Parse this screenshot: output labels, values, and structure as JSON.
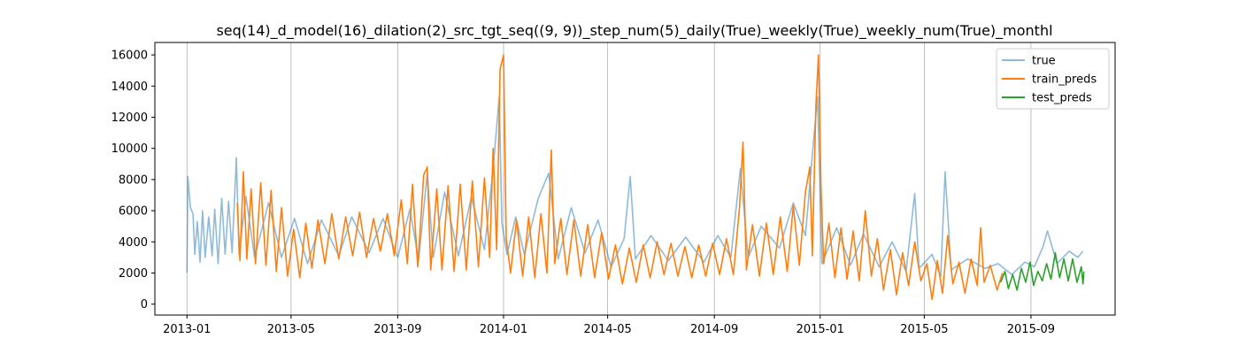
{
  "chart_data": {
    "type": "line",
    "title": "seq(14)_d_model(16)_dilation(2)_src_tgt_seq((9, 9))_step_num(5)_daily(True)_weekly(True)_weekly_num(True)_monthl",
    "xlabel": "",
    "ylabel": "",
    "x_axis": "date",
    "xlim": [
      "2012-11-25",
      "2015-12-07"
    ],
    "ylim": [
      -700,
      16800
    ],
    "x_tick_labels": [
      "2013-01",
      "2013-05",
      "2013-09",
      "2014-01",
      "2014-05",
      "2014-09",
      "2015-01",
      "2015-05",
      "2015-09"
    ],
    "x_ticks": [
      "2013-01-01",
      "2013-05-01",
      "2013-09-01",
      "2014-01-01",
      "2014-05-01",
      "2014-09-01",
      "2015-01-01",
      "2015-05-01",
      "2015-09-01"
    ],
    "y_ticks": [
      0,
      2000,
      4000,
      6000,
      8000,
      10000,
      12000,
      14000,
      16000
    ],
    "grid": "vertical lines at x ticks",
    "legend": {
      "position": "top-right",
      "entries": [
        "true",
        "train_preds",
        "test_preds"
      ]
    },
    "series": [
      {
        "name": "true",
        "color": "#1f77b4",
        "opacity": 0.5,
        "points": [
          [
            "2013-01-01",
            2000
          ],
          [
            "2013-01-02",
            8200
          ],
          [
            "2013-01-05",
            6200
          ],
          [
            "2013-01-08",
            5800
          ],
          [
            "2013-01-10",
            3200
          ],
          [
            "2013-01-13",
            5300
          ],
          [
            "2013-01-16",
            2700
          ],
          [
            "2013-01-19",
            6000
          ],
          [
            "2013-01-22",
            3000
          ],
          [
            "2013-01-26",
            5600
          ],
          [
            "2013-01-30",
            3100
          ],
          [
            "2013-02-02",
            6100
          ],
          [
            "2013-02-06",
            2600
          ],
          [
            "2013-02-10",
            6800
          ],
          [
            "2013-02-14",
            3200
          ],
          [
            "2013-02-18",
            6600
          ],
          [
            "2013-02-22",
            3300
          ],
          [
            "2013-02-27",
            9400
          ],
          [
            "2013-03-02",
            3200
          ],
          [
            "2013-03-10",
            6900
          ],
          [
            "2013-03-20",
            3000
          ],
          [
            "2013-04-05",
            6500
          ],
          [
            "2013-04-20",
            3000
          ],
          [
            "2013-05-05",
            5500
          ],
          [
            "2013-05-20",
            2600
          ],
          [
            "2013-06-05",
            5400
          ],
          [
            "2013-06-25",
            3100
          ],
          [
            "2013-07-10",
            5600
          ],
          [
            "2013-07-30",
            3300
          ],
          [
            "2013-08-15",
            5500
          ],
          [
            "2013-09-01",
            3000
          ],
          [
            "2013-09-15",
            6100
          ],
          [
            "2013-09-25",
            2800
          ],
          [
            "2013-10-05",
            8400
          ],
          [
            "2013-10-12",
            3000
          ],
          [
            "2013-10-25",
            7200
          ],
          [
            "2013-11-10",
            3100
          ],
          [
            "2013-11-25",
            6900
          ],
          [
            "2013-12-10",
            3500
          ],
          [
            "2013-12-20",
            8700
          ],
          [
            "2013-12-27",
            13300
          ],
          [
            "2013-12-30",
            5200
          ],
          [
            "2014-01-05",
            3200
          ],
          [
            "2014-01-15",
            5600
          ],
          [
            "2014-01-25",
            3200
          ],
          [
            "2014-02-10",
            6800
          ],
          [
            "2014-02-22",
            8400
          ],
          [
            "2014-03-05",
            2900
          ],
          [
            "2014-03-20",
            6200
          ],
          [
            "2014-04-05",
            3300
          ],
          [
            "2014-04-20",
            5400
          ],
          [
            "2014-05-05",
            2400
          ],
          [
            "2014-05-20",
            4200
          ],
          [
            "2014-05-27",
            8200
          ],
          [
            "2014-06-02",
            2900
          ],
          [
            "2014-06-20",
            4400
          ],
          [
            "2014-07-10",
            2800
          ],
          [
            "2014-07-30",
            4300
          ],
          [
            "2014-08-20",
            2700
          ],
          [
            "2014-09-05",
            4400
          ],
          [
            "2014-09-20",
            3000
          ],
          [
            "2014-10-01",
            8700
          ],
          [
            "2014-10-10",
            3000
          ],
          [
            "2014-10-25",
            5000
          ],
          [
            "2014-11-15",
            3600
          ],
          [
            "2014-12-01",
            6500
          ],
          [
            "2014-12-15",
            4400
          ],
          [
            "2014-12-25",
            10900
          ],
          [
            "2014-12-29",
            13300
          ],
          [
            "2015-01-03",
            2600
          ],
          [
            "2015-01-20",
            4900
          ],
          [
            "2015-02-05",
            2500
          ],
          [
            "2015-02-20",
            4500
          ],
          [
            "2015-03-10",
            2400
          ],
          [
            "2015-03-25",
            4000
          ],
          [
            "2015-04-10",
            2100
          ],
          [
            "2015-04-20",
            7100
          ],
          [
            "2015-04-25",
            2300
          ],
          [
            "2015-05-10",
            3200
          ],
          [
            "2015-05-20",
            1800
          ],
          [
            "2015-05-25",
            8500
          ],
          [
            "2015-06-01",
            2200
          ],
          [
            "2015-06-20",
            2900
          ],
          [
            "2015-07-10",
            2300
          ],
          [
            "2015-07-25",
            2600
          ],
          [
            "2015-08-10",
            1900
          ],
          [
            "2015-08-25",
            2700
          ],
          [
            "2015-09-05",
            2400
          ],
          [
            "2015-09-15",
            3700
          ],
          [
            "2015-09-20",
            4700
          ],
          [
            "2015-10-01",
            2600
          ],
          [
            "2015-10-15",
            3400
          ],
          [
            "2015-10-25",
            3000
          ],
          [
            "2015-10-31",
            3400
          ]
        ]
      },
      {
        "name": "train_preds",
        "color": "#ff7f0e",
        "opacity": 1,
        "points": [
          [
            "2013-02-28",
            6500
          ],
          [
            "2013-03-03",
            2800
          ],
          [
            "2013-03-07",
            8500
          ],
          [
            "2013-03-11",
            2900
          ],
          [
            "2013-03-16",
            7400
          ],
          [
            "2013-03-21",
            2600
          ],
          [
            "2013-03-27",
            7800
          ],
          [
            "2013-04-02",
            2500
          ],
          [
            "2013-04-08",
            7300
          ],
          [
            "2013-04-14",
            2100
          ],
          [
            "2013-04-20",
            6200
          ],
          [
            "2013-04-27",
            1800
          ],
          [
            "2013-05-04",
            4800
          ],
          [
            "2013-05-11",
            1700
          ],
          [
            "2013-05-18",
            5200
          ],
          [
            "2013-05-25",
            2300
          ],
          [
            "2013-06-01",
            5400
          ],
          [
            "2013-06-09",
            2600
          ],
          [
            "2013-06-17",
            5800
          ],
          [
            "2013-06-25",
            2900
          ],
          [
            "2013-07-03",
            5600
          ],
          [
            "2013-07-11",
            3100
          ],
          [
            "2013-07-19",
            5900
          ],
          [
            "2013-07-27",
            3000
          ],
          [
            "2013-08-04",
            5500
          ],
          [
            "2013-08-12",
            3400
          ],
          [
            "2013-08-20",
            5800
          ],
          [
            "2013-08-28",
            3100
          ],
          [
            "2013-09-05",
            6700
          ],
          [
            "2013-09-12",
            2600
          ],
          [
            "2013-09-18",
            7700
          ],
          [
            "2013-09-24",
            2400
          ],
          [
            "2013-10-01",
            8300
          ],
          [
            "2013-10-05",
            8800
          ],
          [
            "2013-10-09",
            2200
          ],
          [
            "2013-10-16",
            7400
          ],
          [
            "2013-10-22",
            2200
          ],
          [
            "2013-10-29",
            7600
          ],
          [
            "2013-11-05",
            2100
          ],
          [
            "2013-11-12",
            7700
          ],
          [
            "2013-11-19",
            2200
          ],
          [
            "2013-11-26",
            7900
          ],
          [
            "2013-12-03",
            2400
          ],
          [
            "2013-12-10",
            8100
          ],
          [
            "2013-12-16",
            3000
          ],
          [
            "2013-12-20",
            10000
          ],
          [
            "2013-12-24",
            3500
          ],
          [
            "2013-12-28",
            15100
          ],
          [
            "2014-01-01",
            16000
          ],
          [
            "2014-01-04",
            4200
          ],
          [
            "2014-01-09",
            2000
          ],
          [
            "2014-01-16",
            5400
          ],
          [
            "2014-01-23",
            1800
          ],
          [
            "2014-01-30",
            5600
          ],
          [
            "2014-02-06",
            1700
          ],
          [
            "2014-02-13",
            5800
          ],
          [
            "2014-02-20",
            2000
          ],
          [
            "2014-02-25",
            9900
          ],
          [
            "2014-03-01",
            2600
          ],
          [
            "2014-03-08",
            5500
          ],
          [
            "2014-03-15",
            1900
          ],
          [
            "2014-03-23",
            5400
          ],
          [
            "2014-03-31",
            1800
          ],
          [
            "2014-04-08",
            5100
          ],
          [
            "2014-04-16",
            1700
          ],
          [
            "2014-04-24",
            4600
          ],
          [
            "2014-05-02",
            1600
          ],
          [
            "2014-05-10",
            3800
          ],
          [
            "2014-05-18",
            1300
          ],
          [
            "2014-05-26",
            3600
          ],
          [
            "2014-06-03",
            1400
          ],
          [
            "2014-06-11",
            3800
          ],
          [
            "2014-06-19",
            1700
          ],
          [
            "2014-06-27",
            4000
          ],
          [
            "2014-07-05",
            1900
          ],
          [
            "2014-07-13",
            3900
          ],
          [
            "2014-07-21",
            1800
          ],
          [
            "2014-07-29",
            3700
          ],
          [
            "2014-08-06",
            1700
          ],
          [
            "2014-08-14",
            3800
          ],
          [
            "2014-08-22",
            1800
          ],
          [
            "2014-08-30",
            3900
          ],
          [
            "2014-09-07",
            1900
          ],
          [
            "2014-09-15",
            4200
          ],
          [
            "2014-09-23",
            1900
          ],
          [
            "2014-09-30",
            6200
          ],
          [
            "2014-10-04",
            10400
          ],
          [
            "2014-10-08",
            2200
          ],
          [
            "2014-10-15",
            5100
          ],
          [
            "2014-10-23",
            1800
          ],
          [
            "2014-10-31",
            5200
          ],
          [
            "2014-11-08",
            1900
          ],
          [
            "2014-11-16",
            5600
          ],
          [
            "2014-11-24",
            2100
          ],
          [
            "2014-12-01",
            6300
          ],
          [
            "2014-12-08",
            2500
          ],
          [
            "2014-12-15",
            7200
          ],
          [
            "2014-12-20",
            8800
          ],
          [
            "2014-12-23",
            3100
          ],
          [
            "2014-12-27",
            12700
          ],
          [
            "2014-12-30",
            16000
          ],
          [
            "2015-01-02",
            7500
          ],
          [
            "2015-01-05",
            2600
          ],
          [
            "2015-01-11",
            5200
          ],
          [
            "2015-01-18",
            1700
          ],
          [
            "2015-01-25",
            4900
          ],
          [
            "2015-02-01",
            1600
          ],
          [
            "2015-02-08",
            4700
          ],
          [
            "2015-02-15",
            1500
          ],
          [
            "2015-02-22",
            6000
          ],
          [
            "2015-03-01",
            1800
          ],
          [
            "2015-03-08",
            4200
          ],
          [
            "2015-03-15",
            900
          ],
          [
            "2015-03-23",
            3500
          ],
          [
            "2015-03-30",
            600
          ],
          [
            "2015-04-06",
            3300
          ],
          [
            "2015-04-13",
            1200
          ],
          [
            "2015-04-20",
            4000
          ],
          [
            "2015-04-27",
            1500
          ],
          [
            "2015-05-04",
            2600
          ],
          [
            "2015-05-10",
            300
          ],
          [
            "2015-05-16",
            2800
          ],
          [
            "2015-05-22",
            700
          ],
          [
            "2015-05-28",
            4400
          ],
          [
            "2015-06-03",
            1300
          ],
          [
            "2015-06-10",
            2700
          ],
          [
            "2015-06-17",
            700
          ],
          [
            "2015-06-24",
            2900
          ],
          [
            "2015-07-01",
            1200
          ],
          [
            "2015-07-05",
            4900
          ],
          [
            "2015-07-09",
            1400
          ],
          [
            "2015-07-16",
            2500
          ],
          [
            "2015-07-24",
            900
          ],
          [
            "2015-07-30",
            2000
          ]
        ]
      },
      {
        "name": "test_preds",
        "color": "#2ca02c",
        "opacity": 1,
        "points": [
          [
            "2015-07-28",
            1400
          ],
          [
            "2015-08-02",
            2100
          ],
          [
            "2015-08-06",
            1000
          ],
          [
            "2015-08-11",
            1900
          ],
          [
            "2015-08-16",
            900
          ],
          [
            "2015-08-21",
            2300
          ],
          [
            "2015-08-26",
            1400
          ],
          [
            "2015-08-31",
            2700
          ],
          [
            "2015-09-04",
            1200
          ],
          [
            "2015-09-09",
            2100
          ],
          [
            "2015-09-14",
            1500
          ],
          [
            "2015-09-19",
            2600
          ],
          [
            "2015-09-24",
            1600
          ],
          [
            "2015-09-29",
            3300
          ],
          [
            "2015-10-04",
            1700
          ],
          [
            "2015-10-09",
            2900
          ],
          [
            "2015-10-14",
            1500
          ],
          [
            "2015-10-19",
            2900
          ],
          [
            "2015-10-24",
            1400
          ],
          [
            "2015-10-29",
            2400
          ],
          [
            "2015-10-31",
            1300
          ],
          [
            "2015-11-01",
            2100
          ]
        ]
      }
    ]
  }
}
